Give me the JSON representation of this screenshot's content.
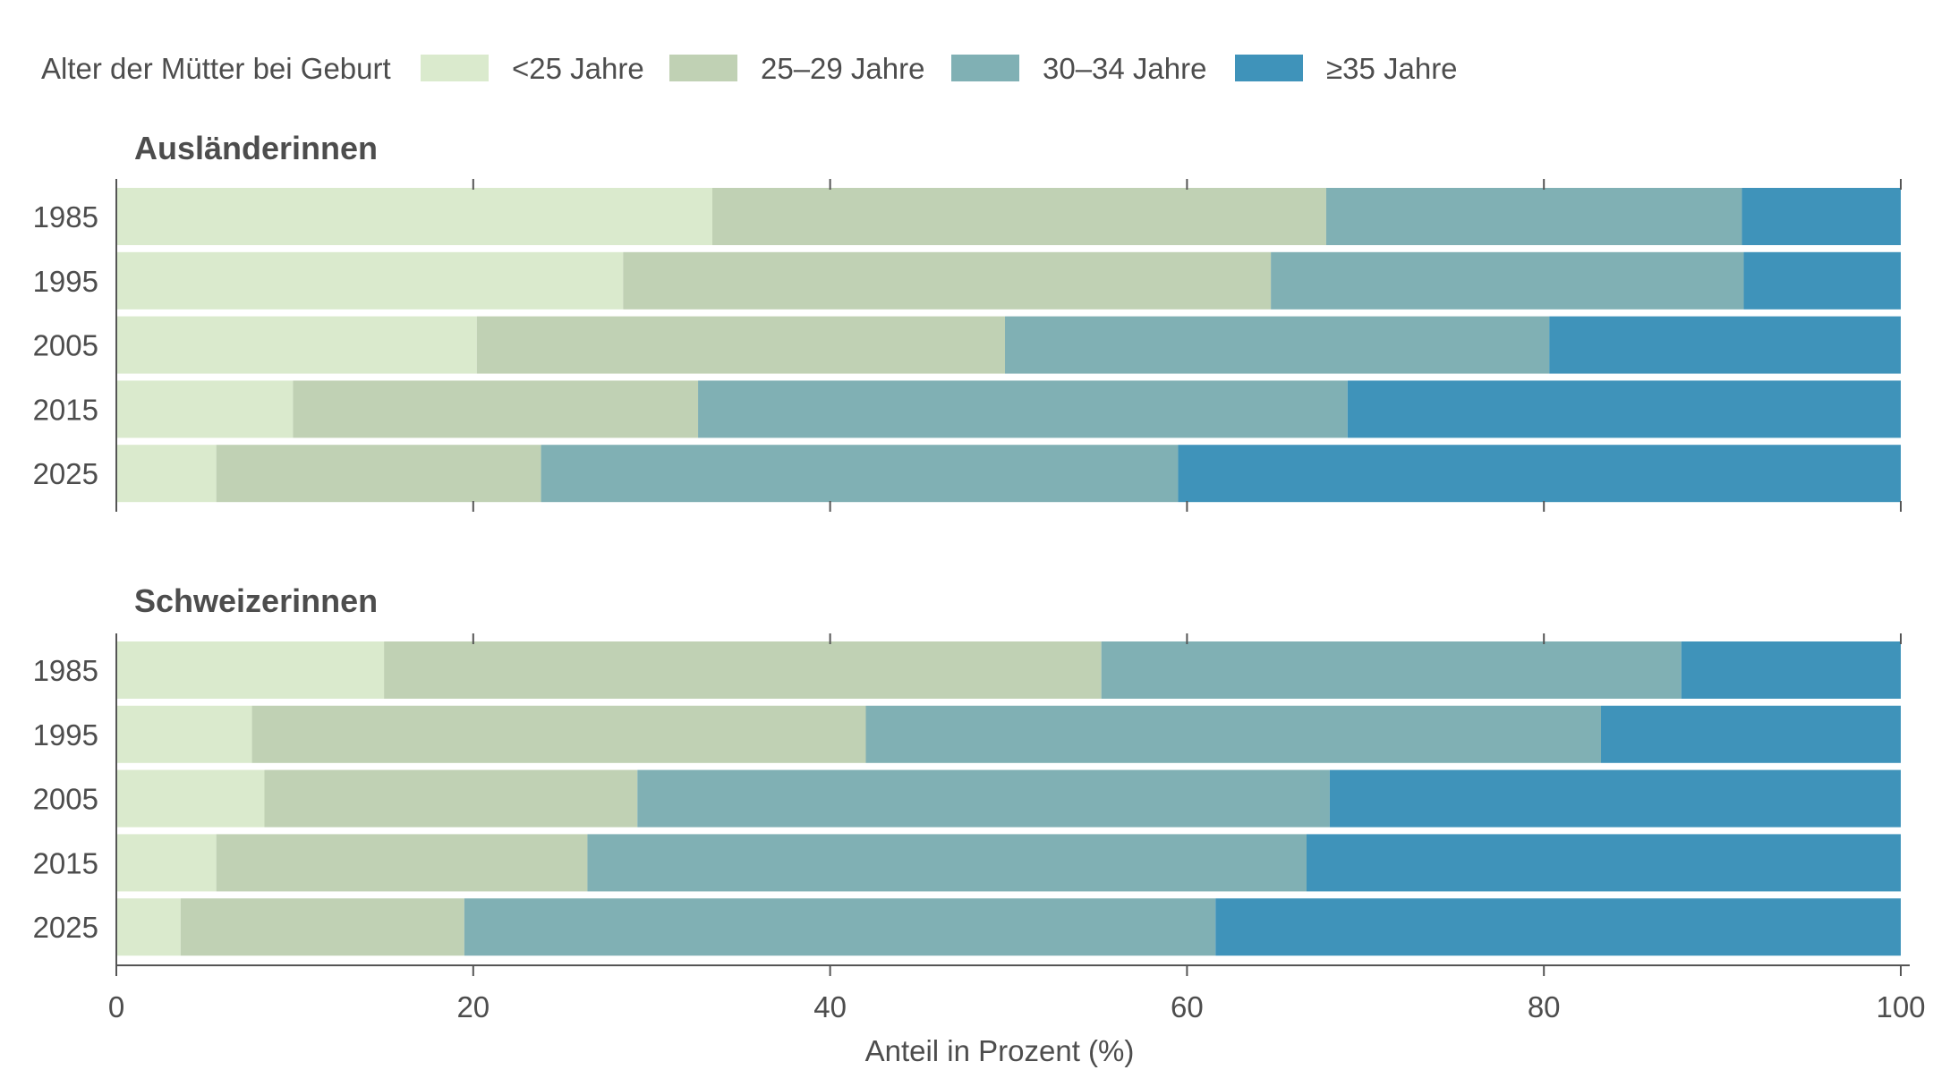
{
  "chart_data": {
    "type": "bar",
    "orientation": "horizontal",
    "stacked": true,
    "legend": {
      "title": "Alter der Mütter bei Geburt",
      "placement": "top"
    },
    "series": [
      {
        "name": "<25 Jahre",
        "color": "#daeacd"
      },
      {
        "name": "25–29 Jahre",
        "color": "#c0d1b4"
      },
      {
        "name": "30–34 Jahre",
        "color": "#80b0b4"
      },
      {
        "name": "≥35 Jahre",
        "color": "#3f93ba"
      }
    ],
    "xaxis": {
      "label": "Anteil in Prozent (%)",
      "lim": [
        0,
        100
      ],
      "ticks": [
        0,
        20,
        40,
        60,
        80,
        100
      ],
      "tick_labels": [
        "0",
        "20",
        "40",
        "60",
        "80",
        "100"
      ]
    },
    "grid": false,
    "panels": [
      {
        "title": "Ausländerinnen",
        "categories": [
          "1985",
          "1995",
          "2005",
          "2015",
          "2025"
        ],
        "values": [
          [
            33.4,
            34.4,
            23.3,
            8.9
          ],
          [
            28.4,
            36.3,
            26.5,
            8.8
          ],
          [
            20.2,
            29.6,
            30.5,
            19.7
          ],
          [
            9.9,
            22.7,
            36.4,
            31.0
          ],
          [
            5.6,
            18.2,
            35.7,
            40.5
          ]
        ]
      },
      {
        "title": "Schweizerinnen",
        "categories": [
          "1985",
          "1995",
          "2005",
          "2015",
          "2025"
        ],
        "values": [
          [
            15.0,
            40.2,
            32.5,
            12.3
          ],
          [
            7.6,
            34.4,
            41.2,
            16.8
          ],
          [
            8.3,
            20.9,
            38.8,
            32.0
          ],
          [
            5.6,
            20.8,
            40.3,
            33.3
          ],
          [
            3.6,
            15.9,
            42.1,
            38.4
          ]
        ]
      }
    ]
  }
}
